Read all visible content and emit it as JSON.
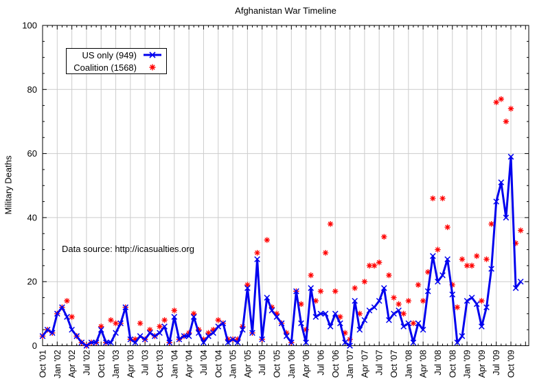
{
  "title": "Afghanistan War Timeline",
  "annotation": "Data source: http://icasualties.org",
  "y_axis_label": "Military Deaths",
  "legend": {
    "position": "top-left",
    "items": [
      {
        "label": "US only (949)",
        "marker": "line-with-x",
        "color": "#0000ee"
      },
      {
        "label": "Coalition (1568)",
        "marker": "asterisk",
        "color": "#ff0000"
      }
    ]
  },
  "colors": {
    "background": "#ffffff",
    "border": "#000000",
    "grid": "#cccccc",
    "us_series": "#0000ee",
    "coalition_series": "#ff0000",
    "text": "#000000"
  },
  "chart_data": {
    "type": "line",
    "x_start": "Oct 2001",
    "x_end": "Dec 2009",
    "x_interval": "monthly",
    "x_tick_labels": [
      "Oct '01",
      "Jan '02",
      "Apr '02",
      "Jul '02",
      "Oct '02",
      "Jan '03",
      "Apr '03",
      "Jul '03",
      "Oct '03",
      "Jan '04",
      "Apr '04",
      "Jul '04",
      "Oct '04",
      "Jan '05",
      "Apr '05",
      "Jul '05",
      "Oct '05",
      "Jan '06",
      "Apr '06",
      "Jul '06",
      "Oct '06",
      "Jan '07",
      "Apr '07",
      "Jul '07",
      "Oct '07",
      "Jan '08",
      "Apr '08",
      "Jul '08",
      "Oct '08",
      "Jan '09",
      "Apr '09",
      "Jul '09",
      "Oct '09"
    ],
    "x_tick_every_months": 3,
    "ylabel": "Military Deaths",
    "ylim": [
      0,
      100
    ],
    "yticks": [
      0,
      20,
      40,
      60,
      80,
      100
    ],
    "y_minor_tick_step": 5,
    "grid": true,
    "legend_position": "top-left",
    "series": [
      {
        "name": "US only (949)",
        "color": "#0000ee",
        "style": "thick-line-with-x-markers",
        "values": [
          3,
          5,
          4,
          10,
          12,
          9,
          5,
          3,
          1,
          0,
          1,
          1,
          5,
          1,
          1,
          4,
          7,
          12,
          2,
          1,
          3,
          2,
          4,
          3,
          4,
          6,
          1,
          9,
          2,
          3,
          3,
          9,
          4,
          1,
          3,
          4,
          6,
          7,
          1,
          2,
          1,
          5,
          18,
          4,
          27,
          2,
          15,
          11,
          9,
          7,
          3,
          1,
          17,
          7,
          1,
          18,
          9,
          10,
          10,
          6,
          10,
          7,
          1,
          0,
          14,
          5,
          8,
          11,
          12,
          14,
          18,
          8,
          10,
          11,
          6,
          7,
          1,
          7,
          5,
          17,
          28,
          20,
          22,
          27,
          16,
          1,
          3,
          14,
          15,
          13,
          6,
          12,
          24,
          45,
          51,
          40,
          59,
          18,
          20
        ]
      },
      {
        "name": "Coalition (1568)",
        "color": "#ff0000",
        "style": "asterisk-markers-only",
        "values": [
          3,
          5,
          4,
          10,
          12,
          14,
          9,
          3,
          1,
          0,
          1,
          1,
          6,
          1,
          8,
          7,
          7,
          12,
          2,
          2,
          7,
          2,
          5,
          3,
          6,
          8,
          1,
          11,
          2,
          3,
          4,
          10,
          5,
          2,
          4,
          5,
          8,
          7,
          2,
          2,
          2,
          6,
          19,
          4,
          29,
          2,
          33,
          12,
          10,
          7,
          4,
          1,
          17,
          13,
          5,
          22,
          14,
          17,
          29,
          38,
          17,
          9,
          4,
          2,
          18,
          10,
          20,
          25,
          25,
          26,
          34,
          22,
          15,
          13,
          10,
          14,
          7,
          19,
          14,
          23,
          46,
          30,
          46,
          37,
          19,
          12,
          27,
          25,
          25,
          28,
          14,
          27,
          38,
          76,
          77,
          70,
          74,
          32,
          36
        ]
      }
    ]
  }
}
